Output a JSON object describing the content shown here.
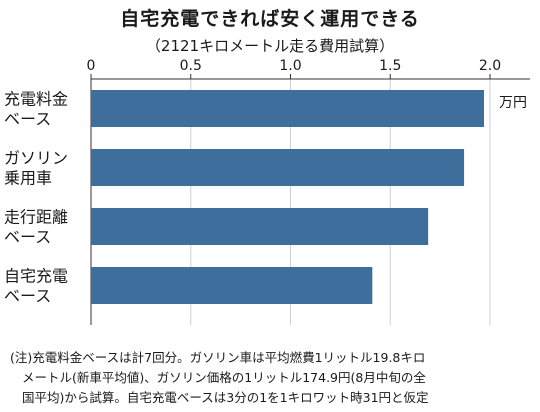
{
  "chart_data": {
    "type": "bar",
    "orientation": "horizontal",
    "title": "自宅充電できれば安く運用できる",
    "subtitle": "（2121キロメートル走る費用試算）",
    "unit": "万円",
    "categories": [
      [
        "充電料金",
        "ベース"
      ],
      [
        "ガソリン",
        "乗用車"
      ],
      [
        "走行距離",
        "ベース"
      ],
      [
        "自宅充電",
        "ベース"
      ]
    ],
    "values": [
      1.97,
      1.87,
      1.69,
      1.41
    ],
    "xlim": [
      0,
      2.2
    ],
    "xticks": [
      0,
      0.5,
      1.0,
      1.5,
      2.0
    ],
    "xtick_labels": [
      "0",
      "0.5",
      "1.0",
      "1.5",
      "2.0"
    ],
    "grid": true,
    "bar_color": "#3e6e9c",
    "grid_color": "#cfcfcf"
  },
  "note": {
    "lines": [
      "(注)充電料金ベースは計7回分。ガソリン車は平均燃費1リットル19.8キロ",
      "メートル(新車平均値)、ガソリン価格の1リットル174.9円(8月中旬の全",
      "国平均)から試算。自宅充電ベースは3分の1を1キロワット時31円と仮定"
    ]
  }
}
